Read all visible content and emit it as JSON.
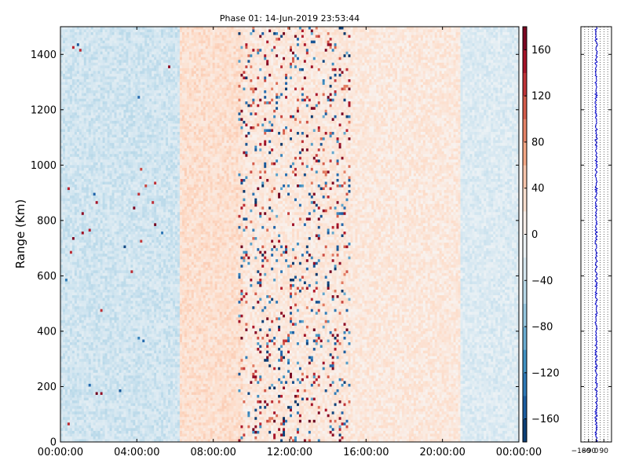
{
  "chart_data": [
    {
      "type": "heatmap",
      "title": "Phase 01: 14-Jun-2019 23:53:44",
      "xlabel": "",
      "ylabel": "Range (Km)",
      "x_tick_labels": [
        "00:00:00",
        "04:00:00",
        "08:00:00",
        "12:00:00",
        "16:00:00",
        "20:00:00",
        "00:00:00"
      ],
      "x_range_hours": [
        0,
        24
      ],
      "ylim": [
        0,
        1500
      ],
      "y_ticks": [
        0,
        200,
        400,
        600,
        800,
        1000,
        1200,
        1400
      ],
      "colorbar": {
        "colormap": "RdBu_r",
        "range": [
          -180,
          180
        ],
        "ticks": [
          -160,
          -120,
          -80,
          -40,
          0,
          40,
          80,
          120,
          160
        ]
      },
      "grid": false,
      "noise_pattern": {
        "description_bands": [
          {
            "hours": [
              0,
              6.2
            ],
            "phase_deg": -35
          },
          {
            "hours": [
              6.2,
              9.5
            ],
            "phase_deg": 30
          },
          {
            "hours": [
              9.5,
              15.5
            ],
            "phase_deg": 20
          },
          {
            "hours": [
              15.5,
              21
            ],
            "phase_deg": 20
          },
          {
            "hours": [
              21,
              24
            ],
            "phase_deg": -25
          }
        ]
      }
    },
    {
      "type": "line",
      "title": "",
      "xlim": [
        -180,
        180
      ],
      "x_tick_labels": [
        "−180",
        "−90",
        "0",
        "90"
      ],
      "ylim": [
        0,
        1500
      ],
      "mean_phase_deg": 0,
      "line_color": "#0000cc",
      "grid": "dotted vertical"
    }
  ]
}
